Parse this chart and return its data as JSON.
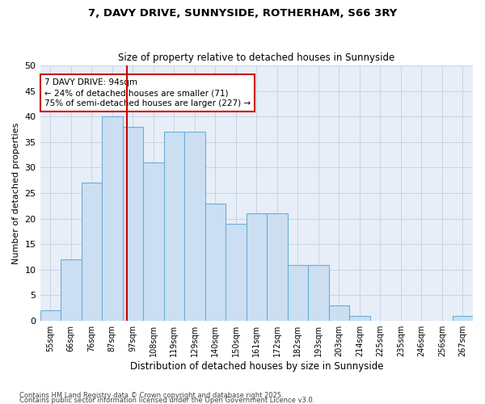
{
  "title1": "7, DAVY DRIVE, SUNNYSIDE, ROTHERHAM, S66 3RY",
  "title2": "Size of property relative to detached houses in Sunnyside",
  "xlabel": "Distribution of detached houses by size in Sunnyside",
  "ylabel": "Number of detached properties",
  "categories": [
    "55sqm",
    "66sqm",
    "76sqm",
    "87sqm",
    "97sqm",
    "108sqm",
    "119sqm",
    "129sqm",
    "140sqm",
    "150sqm",
    "161sqm",
    "172sqm",
    "182sqm",
    "193sqm",
    "203sqm",
    "214sqm",
    "225sqm",
    "235sqm",
    "246sqm",
    "256sqm",
    "267sqm"
  ],
  "values": [
    2,
    12,
    27,
    40,
    38,
    31,
    37,
    37,
    23,
    19,
    21,
    21,
    11,
    11,
    3,
    1,
    0,
    0,
    0,
    0,
    1
  ],
  "bar_color": "#ccdff2",
  "bar_edge_color": "#6aaed6",
  "red_line_color": "#cc0000",
  "annotation_title": "7 DAVY DRIVE: 94sqm",
  "annotation_line1": "← 24% of detached houses are smaller (71)",
  "annotation_line2": "75% of semi-detached houses are larger (227) →",
  "annotation_box_color": "#ffffff",
  "annotation_border_color": "#cc0000",
  "grid_color": "#c8d4e4",
  "background_color": "#e8eef8",
  "footer1": "Contains HM Land Registry data © Crown copyright and database right 2025.",
  "footer2": "Contains public sector information licensed under the Open Government Licence v3.0.",
  "ylim": [
    0,
    50
  ],
  "yticks": [
    0,
    5,
    10,
    15,
    20,
    25,
    30,
    35,
    40,
    45,
    50
  ]
}
